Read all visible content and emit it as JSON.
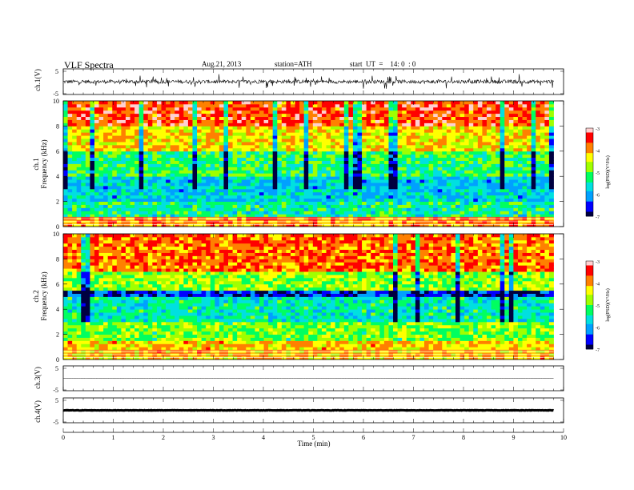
{
  "header": {
    "title": "VLF  Spectra",
    "date": "Aug.21, 2013",
    "station": "station=ATH",
    "start": "start  UT  =    14: 0  : 0"
  },
  "colors": {
    "spectrogram_scale": [
      "#000040",
      "#0000ff",
      "#00a0ff",
      "#00e0e0",
      "#00ff60",
      "#a0ff00",
      "#ffff00",
      "#ff8000",
      "#ff0000",
      "#ffd0d0"
    ]
  },
  "chart_data": [
    {
      "type": "line",
      "name": "ch1-waveform",
      "ylabel": "ch.1(V)",
      "yticks": [
        "5",
        "-5"
      ],
      "ylim": [
        -5,
        5
      ],
      "x_range_min": [
        0,
        9.8
      ],
      "approx_level": 0,
      "approx_swing": [
        -1.5,
        1.5
      ]
    },
    {
      "type": "heatmap",
      "name": "ch1-spectrogram",
      "ylabel_top": "ch.1",
      "ylabel": "Frequency  (kHz)",
      "ylim": [
        0,
        10
      ],
      "yticks": [
        "0",
        "2",
        "4",
        "6",
        "8",
        "10"
      ],
      "x_range_min": [
        0,
        9.8
      ],
      "colorbar_label": "log(PSD)(V²/Hz)",
      "colorbar_range": [
        -7,
        -3
      ],
      "colorbar_ticks": [
        "-3",
        "-4",
        "-5",
        "-6",
        "-7"
      ],
      "bands_log_psd": [
        {
          "f": [
            8,
            10
          ],
          "value": -3.6
        },
        {
          "f": [
            6,
            8
          ],
          "value": -4.3
        },
        {
          "f": [
            4,
            6
          ],
          "value": -5.2
        },
        {
          "f": [
            2,
            4
          ],
          "value": -5.8
        },
        {
          "f": [
            0.8,
            2
          ],
          "value": -5.4
        },
        {
          "f": [
            0,
            0.8
          ],
          "value": -4.0
        }
      ]
    },
    {
      "type": "heatmap",
      "name": "ch2-spectrogram",
      "ylabel_top": "ch.2",
      "ylabel": "Frequency  (kHz)",
      "ylim": [
        0,
        10
      ],
      "yticks": [
        "0",
        "2",
        "4",
        "6",
        "8",
        "10"
      ],
      "x_range_min": [
        0,
        9.8
      ],
      "colorbar_label": "log(PSD)(V²/Hz)",
      "colorbar_range": [
        -7,
        -3
      ],
      "colorbar_ticks": [
        "-3",
        "-4",
        "-5",
        "-6",
        "-7"
      ],
      "bands_log_psd": [
        {
          "f": [
            7,
            10
          ],
          "value": -3.8
        },
        {
          "f": [
            5.5,
            7
          ],
          "value": -4.8
        },
        {
          "f": [
            5,
            5.5
          ],
          "value": -6.5
        },
        {
          "f": [
            3,
            5
          ],
          "value": -5.5
        },
        {
          "f": [
            1.5,
            3
          ],
          "value": -4.9
        },
        {
          "f": [
            0,
            1.5
          ],
          "value": -4.2
        }
      ]
    },
    {
      "type": "line",
      "name": "ch3-waveform",
      "ylabel": "ch.3(V)",
      "yticks": [
        "5",
        "-5"
      ],
      "ylim": [
        -5,
        5
      ],
      "x_range_min": [
        0,
        9.8
      ],
      "approx_level": 0
    },
    {
      "type": "line",
      "name": "ch4-waveform",
      "ylabel": "ch.4(V)",
      "yticks": [
        "5",
        "-5"
      ],
      "ylim": [
        -5,
        5
      ],
      "x_range_min": [
        0,
        9.8
      ],
      "approx_level": 0
    }
  ],
  "xaxis": {
    "label": "Time  (min)",
    "xlim": [
      0,
      10
    ],
    "ticks": [
      "0",
      "1",
      "2",
      "3",
      "4",
      "5",
      "6",
      "7",
      "8",
      "9",
      "10"
    ]
  }
}
